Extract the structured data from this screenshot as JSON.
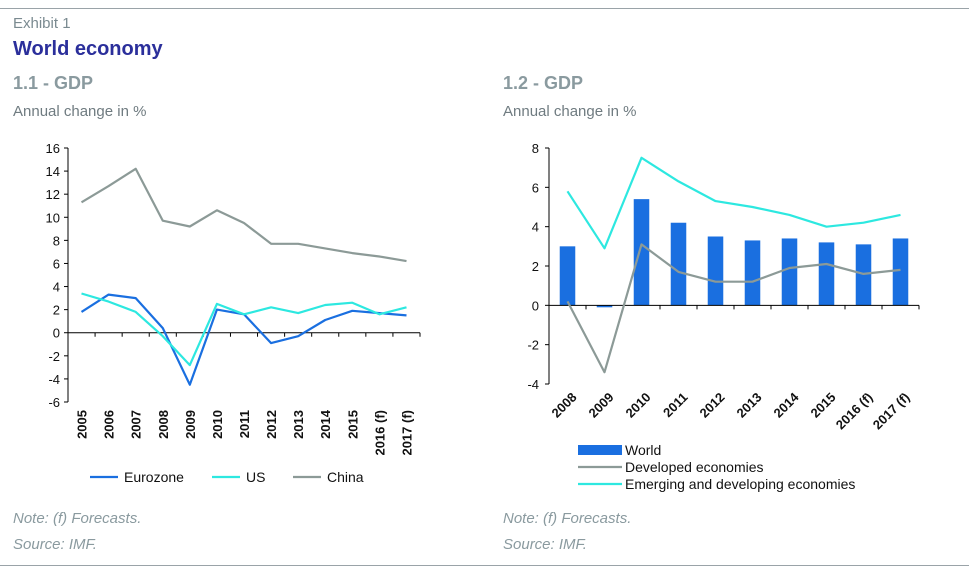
{
  "header": {
    "exhibit": "Exhibit 1",
    "title": "World economy"
  },
  "panels": [
    {
      "title": "1.1 - GDP",
      "subtitle": "Annual change in %",
      "note": "Note: (f) Forecasts.",
      "source": "Source: IMF."
    },
    {
      "title": "1.2 - GDP",
      "subtitle": "Annual change in %",
      "note": "Note: (f) Forecasts.",
      "source": "Source: IMF."
    }
  ],
  "colors": {
    "eurozone": "#1a6fe0",
    "us": "#2de8e0",
    "china": "#8c9a97",
    "world": "#1a6fe0",
    "developed": "#8c9a97",
    "emerging": "#2de8e0"
  },
  "chart_data": [
    {
      "type": "line",
      "title": "1.1 - GDP",
      "subtitle": "Annual change in %",
      "categories": [
        "2005",
        "2006",
        "2007",
        "2008",
        "2009",
        "2010",
        "2011",
        "2012",
        "2013",
        "2014",
        "2015",
        "2016 (f)",
        "2017 (f)"
      ],
      "ylim": [
        -6,
        16
      ],
      "yticks": [
        -6,
        -4,
        -2,
        0,
        2,
        4,
        6,
        8,
        10,
        12,
        14,
        16
      ],
      "legend": "bottom",
      "series": [
        {
          "name": "Eurozone",
          "values": [
            1.8,
            3.3,
            3.0,
            0.4,
            -4.5,
            2.0,
            1.6,
            -0.9,
            -0.3,
            1.1,
            1.9,
            1.7,
            1.5
          ]
        },
        {
          "name": "US",
          "values": [
            3.4,
            2.7,
            1.8,
            -0.3,
            -2.8,
            2.5,
            1.6,
            2.2,
            1.7,
            2.4,
            2.6,
            1.6,
            2.2
          ]
        },
        {
          "name": "China",
          "values": [
            11.3,
            12.7,
            14.2,
            9.7,
            9.2,
            10.6,
            9.5,
            7.7,
            7.7,
            7.3,
            6.9,
            6.6,
            6.2
          ]
        }
      ]
    },
    {
      "type": "bar",
      "title": "1.2 - GDP",
      "subtitle": "Annual change in %",
      "categories": [
        "2008",
        "2009",
        "2010",
        "2011",
        "2012",
        "2013",
        "2014",
        "2015",
        "2016 (f)",
        "2017 (f)"
      ],
      "ylim": [
        -4,
        8
      ],
      "yticks": [
        -4,
        -2,
        0,
        2,
        4,
        6,
        8
      ],
      "legend": "bottom",
      "series": [
        {
          "name": "World",
          "kind": "bar",
          "values": [
            3.0,
            -0.1,
            5.4,
            4.2,
            3.5,
            3.3,
            3.4,
            3.2,
            3.1,
            3.4
          ]
        },
        {
          "name": "Developed economies",
          "kind": "line",
          "values": [
            0.2,
            -3.4,
            3.1,
            1.7,
            1.2,
            1.2,
            1.9,
            2.1,
            1.6,
            1.8
          ]
        },
        {
          "name": "Emerging and developing economies",
          "kind": "line",
          "values": [
            5.8,
            2.9,
            7.5,
            6.3,
            5.3,
            5.0,
            4.6,
            4.0,
            4.2,
            4.6
          ]
        }
      ]
    }
  ]
}
